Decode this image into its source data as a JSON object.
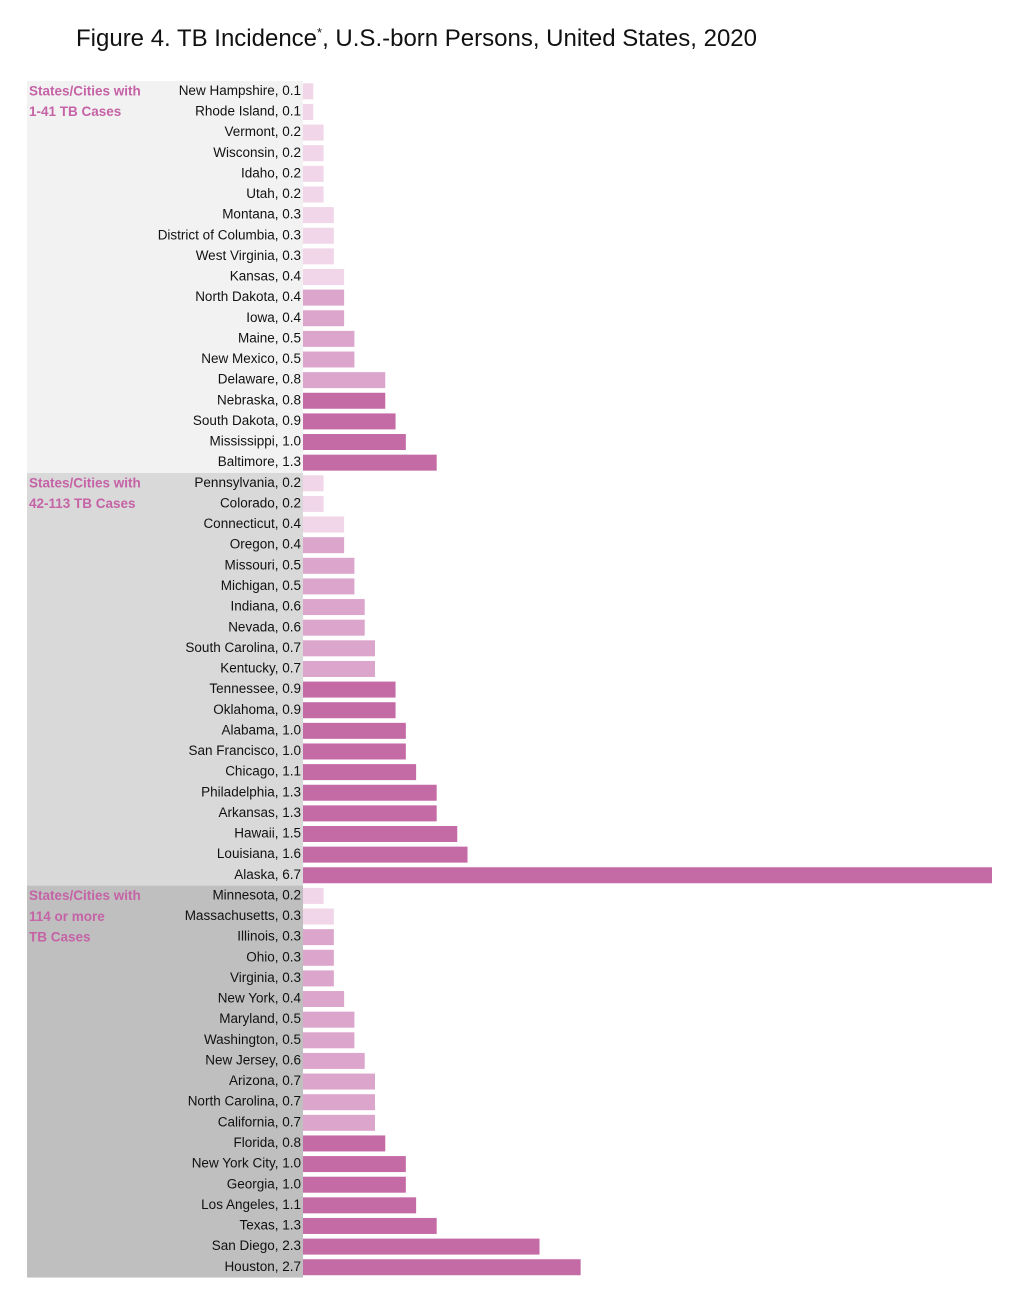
{
  "chart_data": {
    "type": "bar",
    "title": [
      "Figure 4. TB Incidence",
      "*",
      ", U.S.-born Persons, United States, 2020"
    ],
    "groups": [
      {
        "label": [
          "States/Cities with",
          "1-41 TB Cases"
        ],
        "background": "#f2f2f2",
        "categories": [
          "New Hampshire, 0.1",
          "Rhode Island, 0.1",
          "Vermont, 0.2",
          "Wisconsin, 0.2",
          "Idaho, 0.2",
          "Utah, 0.2",
          "Montana, 0.3",
          "District of Columbia, 0.3",
          "West Virginia, 0.3",
          "Kansas, 0.4",
          "North Dakota, 0.4",
          "Iowa, 0.4",
          "Maine, 0.5",
          "New Mexico, 0.5",
          "Delaware, 0.8",
          "Nebraska, 0.8",
          "South Dakota, 0.9",
          "Mississippi, 1.0",
          "Baltimore, 1.3"
        ],
        "values": [
          0.1,
          0.1,
          0.2,
          0.2,
          0.2,
          0.2,
          0.3,
          0.3,
          0.3,
          0.4,
          0.4,
          0.4,
          0.5,
          0.5,
          0.8,
          0.8,
          0.9,
          1.0,
          1.3
        ],
        "colors": [
          "#f0d6e8",
          "#f0d6e8",
          "#f0d6e8",
          "#f0d6e8",
          "#f0d6e8",
          "#f0d6e8",
          "#f0d6e8",
          "#f0d6e8",
          "#f0d6e8",
          "#f0d6e8",
          "#dca5cc",
          "#dca5cc",
          "#dca5cc",
          "#dca5cc",
          "#dca5cc",
          "#c46ba6",
          "#c46ba6",
          "#c46ba6",
          "#c46ba6"
        ]
      },
      {
        "label": [
          "States/Cities with",
          "42-113 TB Cases"
        ],
        "background": "#d9d9d9",
        "categories": [
          "Pennsylvania, 0.2",
          "Colorado, 0.2",
          "Connecticut, 0.4",
          "Oregon, 0.4",
          "Missouri, 0.5",
          "Michigan, 0.5",
          "Indiana, 0.6",
          "Nevada, 0.6",
          "South Carolina, 0.7",
          "Kentucky, 0.7",
          "Tennessee, 0.9",
          "Oklahoma, 0.9",
          "Alabama, 1.0",
          "San Francisco, 1.0",
          "Chicago, 1.1",
          "Philadelphia, 1.3",
          "Arkansas, 1.3",
          "Hawaii, 1.5",
          "Louisiana, 1.6",
          "Alaska, 6.7"
        ],
        "values": [
          0.2,
          0.2,
          0.4,
          0.4,
          0.5,
          0.5,
          0.6,
          0.6,
          0.7,
          0.7,
          0.9,
          0.9,
          1.0,
          1.0,
          1.1,
          1.3,
          1.3,
          1.5,
          1.6,
          6.7
        ],
        "colors": [
          "#f0d6e8",
          "#f0d6e8",
          "#f0d6e8",
          "#dca5cc",
          "#dca5cc",
          "#dca5cc",
          "#dca5cc",
          "#dca5cc",
          "#dca5cc",
          "#dca5cc",
          "#c46ba6",
          "#c46ba6",
          "#c46ba6",
          "#c46ba6",
          "#c46ba6",
          "#c46ba6",
          "#c46ba6",
          "#c46ba6",
          "#c46ba6",
          "#c46ba6"
        ]
      },
      {
        "label": [
          "States/Cities with",
          "114 or more",
          "TB Cases"
        ],
        "background": "#bfbfbf",
        "categories": [
          "Minnesota, 0.2",
          "Massachusetts, 0.3",
          "Illinois, 0.3",
          "Ohio, 0.3",
          "Virginia, 0.3",
          "New York, 0.4",
          "Maryland, 0.5",
          "Washington, 0.5",
          "New Jersey, 0.6",
          "Arizona, 0.7",
          "North Carolina, 0.7",
          "California, 0.7",
          "Florida, 0.8",
          "New York City, 1.0",
          "Georgia, 1.0",
          "Los Angeles, 1.1",
          "Texas, 1.3",
          "San Diego, 2.3",
          "Houston, 2.7"
        ],
        "values": [
          0.2,
          0.3,
          0.3,
          0.3,
          0.3,
          0.4,
          0.5,
          0.5,
          0.6,
          0.7,
          0.7,
          0.7,
          0.8,
          1.0,
          1.0,
          1.1,
          1.3,
          2.3,
          2.7
        ],
        "colors": [
          "#f0d6e8",
          "#f0d6e8",
          "#dca5cc",
          "#dca5cc",
          "#dca5cc",
          "#dca5cc",
          "#dca5cc",
          "#dca5cc",
          "#dca5cc",
          "#dca5cc",
          "#dca5cc",
          "#dca5cc",
          "#c46ba6",
          "#c46ba6",
          "#c46ba6",
          "#c46ba6",
          "#c46ba6",
          "#c46ba6",
          "#c46ba6"
        ]
      }
    ]
  }
}
